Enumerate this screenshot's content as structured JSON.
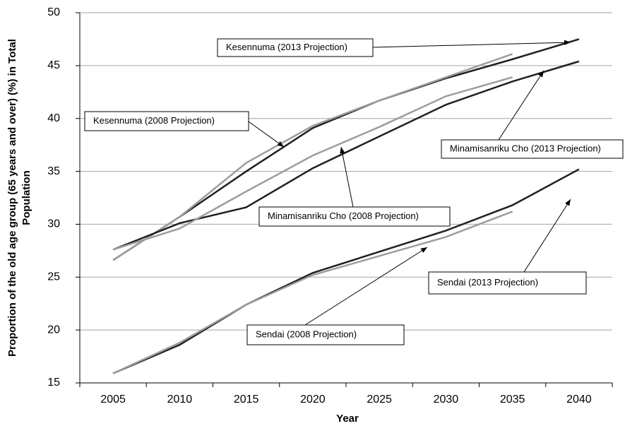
{
  "chart_data": {
    "type": "line",
    "x_label": "Year",
    "y_label": [
      "Proportion of the old age group (65 years and over)   (%) in Total",
      "Population"
    ],
    "categories": [
      "2005",
      "2010",
      "2015",
      "2020",
      "2025",
      "2030",
      "2035",
      "2040"
    ],
    "ylim": [
      15,
      50
    ],
    "yticks": [
      15,
      20,
      25,
      30,
      35,
      40,
      45,
      50
    ],
    "grid": true,
    "series": [
      {
        "name": "Kesennuma  (2013 Projection)",
        "color": "#231f20",
        "values": [
          26.6,
          30.7,
          35.0,
          39.1,
          41.7,
          43.8,
          45.6,
          47.5
        ]
      },
      {
        "name": "Kesennuma (2008 Projection)",
        "color": "#9d9d9d",
        "values": [
          26.6,
          30.7,
          35.8,
          39.3,
          41.7,
          43.9,
          46.1,
          null
        ]
      },
      {
        "name": "Minamisanriku Cho (2013 Projection)",
        "color": "#231f20",
        "values": [
          27.6,
          30.1,
          31.6,
          35.3,
          38.3,
          41.3,
          43.5,
          45.4
        ]
      },
      {
        "name": "Minamisanriku Cho  (2008 Projection)",
        "color": "#9d9d9d",
        "values": [
          27.6,
          29.6,
          33.1,
          36.5,
          39.2,
          42.1,
          43.9,
          null
        ]
      },
      {
        "name": "Sendai (2013 Projection)",
        "color": "#231f20",
        "values": [
          15.9,
          18.6,
          22.4,
          25.4,
          27.4,
          29.4,
          31.8,
          35.2
        ]
      },
      {
        "name": "Sendai (2008 Projection)",
        "color": "#9d9d9d",
        "values": [
          15.9,
          18.8,
          22.4,
          25.2,
          27.0,
          28.8,
          31.2,
          null
        ]
      }
    ]
  }
}
